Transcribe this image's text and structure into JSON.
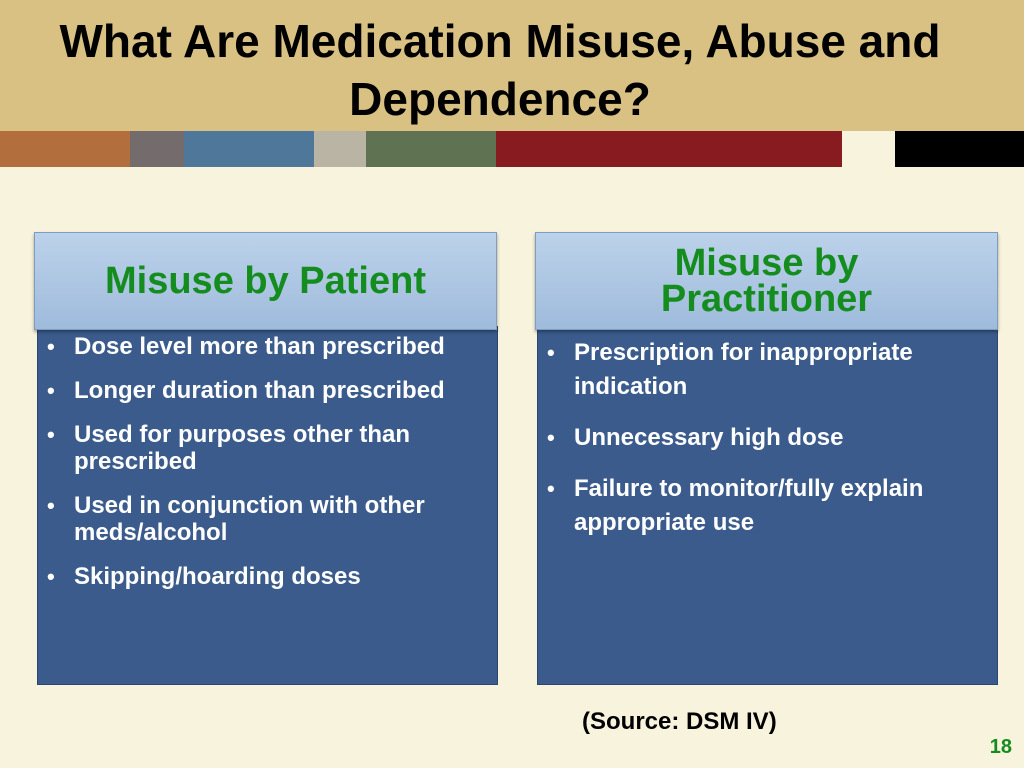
{
  "slide": {
    "title": "What Are Medication Misuse, Abuse and Dependence?",
    "page_number": "18",
    "source": "(Source: DSM IV)"
  },
  "colors": {
    "title_band": "#d8c182",
    "background": "#f8f3dc",
    "panel_header_text": "#148c1e",
    "panel_body": "#3a5b8c",
    "stripes": [
      "#b26e3d",
      "#746b6c",
      "#4f7799",
      "#bab4a4",
      "#5f7252",
      "#871b1f",
      "#f8f3dc",
      "#000000"
    ]
  },
  "left_panel": {
    "heading": "Misuse by Patient",
    "items": [
      "Dose level more than prescribed",
      "Longer duration than prescribed",
      "Used for purposes other than prescribed",
      "Used in conjunction with other meds/alcohol",
      "Skipping/hoarding doses"
    ]
  },
  "right_panel": {
    "heading": "Misuse by Practitioner",
    "items": [
      "Prescription for inappropriate indication",
      "Unnecessary high dose",
      "Failure to monitor/fully explain appropriate use"
    ]
  }
}
